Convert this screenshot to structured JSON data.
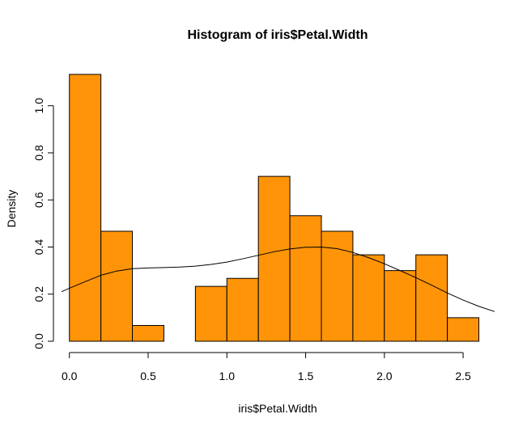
{
  "chart_data": {
    "type": "bar",
    "title": "Histogram of iris$Petal.Width",
    "xlabel": "iris$Petal.Width",
    "ylabel": "Density",
    "bar_color": "#ff9408",
    "bins": [
      {
        "x0": 0.0,
        "x1": 0.2,
        "density": 1.133
      },
      {
        "x0": 0.2,
        "x1": 0.4,
        "density": 0.467
      },
      {
        "x0": 0.4,
        "x1": 0.6,
        "density": 0.067
      },
      {
        "x0": 0.6,
        "x1": 0.8,
        "density": 0.0
      },
      {
        "x0": 0.8,
        "x1": 1.0,
        "density": 0.233
      },
      {
        "x0": 1.0,
        "x1": 1.2,
        "density": 0.267
      },
      {
        "x0": 1.2,
        "x1": 1.4,
        "density": 0.7
      },
      {
        "x0": 1.4,
        "x1": 1.6,
        "density": 0.533
      },
      {
        "x0": 1.6,
        "x1": 1.8,
        "density": 0.467
      },
      {
        "x0": 1.8,
        "x1": 2.0,
        "density": 0.367
      },
      {
        "x0": 2.0,
        "x1": 2.2,
        "density": 0.3
      },
      {
        "x0": 2.2,
        "x1": 2.4,
        "density": 0.367
      },
      {
        "x0": 2.4,
        "x1": 2.6,
        "density": 0.1
      }
    ],
    "density_curve": {
      "x": [
        -0.05,
        0.0,
        0.1,
        0.2,
        0.3,
        0.4,
        0.5,
        0.6,
        0.7,
        0.8,
        0.9,
        1.0,
        1.1,
        1.2,
        1.3,
        1.4,
        1.5,
        1.6,
        1.7,
        1.8,
        1.9,
        2.0,
        2.1,
        2.2,
        2.3,
        2.4,
        2.5,
        2.6,
        2.7
      ],
      "y": [
        0.21,
        0.225,
        0.253,
        0.28,
        0.298,
        0.308,
        0.311,
        0.313,
        0.315,
        0.319,
        0.326,
        0.336,
        0.35,
        0.365,
        0.38,
        0.392,
        0.399,
        0.4,
        0.393,
        0.377,
        0.355,
        0.329,
        0.3,
        0.27,
        0.238,
        0.205,
        0.175,
        0.148,
        0.126
      ]
    },
    "xlim": [
      -0.05,
      2.7
    ],
    "ylim": [
      0,
      1.133
    ],
    "x_ticks": [
      0.0,
      0.5,
      1.0,
      1.5,
      2.0,
      2.5
    ],
    "x_tick_labels": [
      "0.0",
      "0.5",
      "1.0",
      "1.5",
      "2.0",
      "2.5"
    ],
    "y_ticks": [
      0.0,
      0.2,
      0.4,
      0.6,
      0.8,
      1.0
    ],
    "y_tick_labels": [
      "0.0",
      "0.2",
      "0.4",
      "0.6",
      "0.8",
      "1.0"
    ],
    "grid": false
  }
}
